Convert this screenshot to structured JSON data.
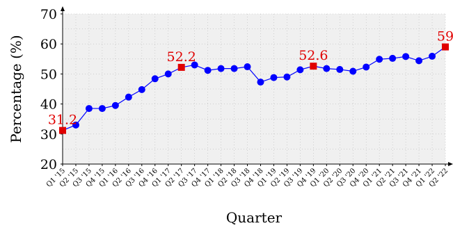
{
  "chart_data": {
    "type": "line",
    "xlabel": "Quarter",
    "ylabel": "Percentage (%)",
    "ylim": [
      20,
      70
    ],
    "yticks": [
      20,
      30,
      40,
      50,
      60,
      70
    ],
    "grid": true,
    "categories": [
      "Q1 '15",
      "Q2 '15",
      "Q3 '15",
      "Q4 '15",
      "Q1 '16",
      "Q2 '16",
      "Q3 '16",
      "Q4 '16",
      "Q1 '17",
      "Q2 '17",
      "Q3 '17",
      "Q4 '17",
      "Q1 '18",
      "Q2 '18",
      "Q3 '18",
      "Q4 '18",
      "Q1 '19",
      "Q2 '19",
      "Q3 '19",
      "Q4 '19",
      "Q1 '20",
      "Q2 '20",
      "Q3 '20",
      "Q4 '20",
      "Q1 '21",
      "Q2 '21",
      "Q3 '21",
      "Q4 '21",
      "Q1 '22",
      "Q2 '22"
    ],
    "series": [
      {
        "color": "#0000ff",
        "values": [
          31.2,
          33.0,
          38.5,
          38.5,
          39.5,
          42.3,
          44.8,
          48.4,
          50.0,
          52.2,
          53.0,
          51.2,
          51.8,
          51.8,
          52.4,
          47.3,
          48.8,
          49.0,
          51.4,
          52.6,
          51.8,
          51.5,
          50.9,
          52.3,
          54.9,
          55.2,
          55.8,
          54.4,
          55.9,
          59.0
        ]
      }
    ],
    "highlights": [
      {
        "index": 0,
        "label": "31.2"
      },
      {
        "index": 9,
        "label": "52.2"
      },
      {
        "index": 19,
        "label": "52.6"
      },
      {
        "index": 29,
        "label": "59"
      }
    ],
    "highlight_color": "#e00000"
  }
}
